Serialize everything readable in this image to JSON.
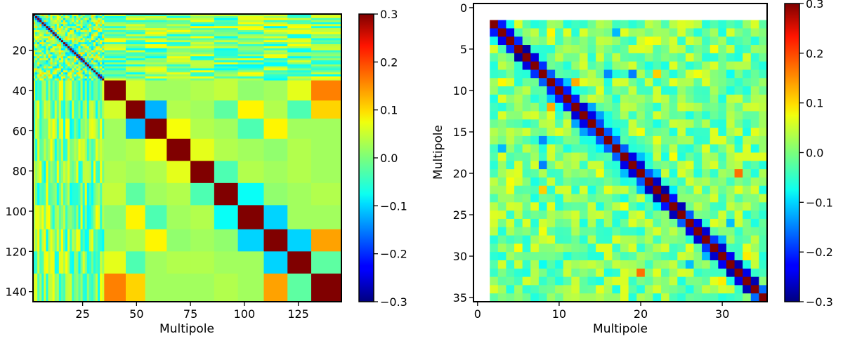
{
  "chart_data": [
    {
      "type": "heatmap",
      "title": "",
      "xlabel": "Multipole",
      "ylabel": "",
      "x_range": [
        2,
        145
      ],
      "y_range": [
        2,
        145
      ],
      "x_ticks": [
        25,
        50,
        75,
        100,
        125
      ],
      "y_ticks": [
        20,
        40,
        60,
        80,
        100,
        120,
        140
      ],
      "fine_block_end": 35,
      "coarse_bin_edges": [
        35,
        45,
        54,
        64,
        75,
        86,
        97,
        109,
        120,
        131,
        145
      ],
      "coarse_matrix": [
        [
          1,
          0.05,
          0.02,
          0.02,
          0.03,
          0.04,
          0.01,
          0.02,
          0.06,
          0.15
        ],
        [
          0.05,
          1,
          -0.12,
          0.03,
          0.02,
          -0.02,
          0.08,
          0.03,
          -0.03,
          0.1
        ],
        [
          0.02,
          -0.12,
          1,
          0.07,
          0.03,
          0.02,
          -0.03,
          0.08,
          0.02,
          0.02
        ],
        [
          0.02,
          0.03,
          0.07,
          1,
          0.06,
          0.03,
          0.02,
          0.01,
          0.03,
          0.02
        ],
        [
          0.03,
          0.02,
          0.03,
          0.06,
          1,
          -0.03,
          0.03,
          0.02,
          0.03,
          0.02
        ],
        [
          0.04,
          -0.02,
          0.02,
          0.03,
          -0.03,
          1,
          -0.07,
          0.01,
          0.02,
          0.03
        ],
        [
          0.01,
          0.08,
          -0.03,
          0.02,
          0.03,
          -0.07,
          1,
          -0.1,
          0.02,
          0.02
        ],
        [
          0.02,
          0.03,
          0.08,
          0.01,
          0.02,
          0.01,
          -0.1,
          1,
          -0.1,
          0.13
        ],
        [
          0.06,
          -0.03,
          0.02,
          0.03,
          0.03,
          0.02,
          0.02,
          -0.1,
          1,
          -0.02
        ],
        [
          0.15,
          0.1,
          0.02,
          0.02,
          0.02,
          0.03,
          0.02,
          0.13,
          -0.02,
          1
        ]
      ],
      "colorbar": {
        "min": -0.3,
        "max": 0.3,
        "ticks": [
          "0.3",
          "0.2",
          "0.1",
          "0.0",
          "−0.1",
          "−0.2",
          "−0.3"
        ]
      }
    },
    {
      "type": "heatmap",
      "title": "",
      "xlabel": "Multipole",
      "ylabel": "Multipole",
      "x_range": [
        -0.5,
        35.5
      ],
      "y_range": [
        -0.5,
        35.5
      ],
      "first_multipole": 2,
      "last_multipole": 35,
      "x_ticks": [
        0,
        10,
        20,
        30
      ],
      "y_ticks": [
        0,
        5,
        10,
        15,
        20,
        25,
        30,
        35
      ],
      "colorbar": {
        "min": -0.3,
        "max": 0.3,
        "ticks": [
          "0.3",
          "0.2",
          "0.1",
          "0.0",
          "−0.1",
          "−0.2",
          "−0.3"
        ]
      }
    }
  ]
}
